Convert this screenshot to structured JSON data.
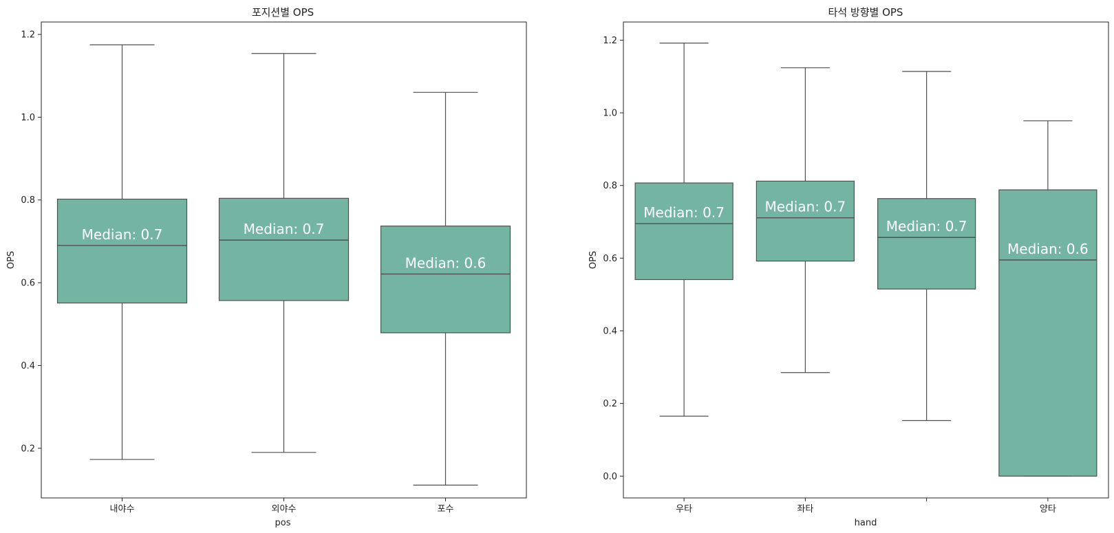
{
  "chart_data": [
    {
      "type": "box",
      "title": "포지션별 OPS",
      "xlabel": "pos",
      "ylabel": "OPS",
      "ylim": [
        0.08,
        1.23
      ],
      "yticks": [
        0.2,
        0.4,
        0.6,
        0.8,
        1.0,
        1.2
      ],
      "ytick_labels": [
        "0.2",
        "0.4",
        "0.6",
        "0.8",
        "1.0",
        "1.2"
      ],
      "categories": [
        "내야수",
        "외야수",
        "포수"
      ],
      "boxes": [
        {
          "whisker_low": 0.173,
          "q1": 0.551,
          "median": 0.69,
          "q3": 0.802,
          "whisker_high": 1.175,
          "label": "Median: 0.7"
        },
        {
          "whisker_low": 0.19,
          "q1": 0.557,
          "median": 0.703,
          "q3": 0.804,
          "whisker_high": 1.154,
          "label": "Median: 0.7"
        },
        {
          "whisker_low": 0.111,
          "q1": 0.479,
          "median": 0.621,
          "q3": 0.737,
          "whisker_high": 1.06,
          "label": "Median: 0.6"
        }
      ],
      "box_color": "#73b5a2",
      "line_color": "#4f4f4f"
    },
    {
      "type": "box",
      "title": "타석 방향별 OPS",
      "xlabel": "hand",
      "ylabel": "OPS",
      "ylim": [
        -0.06,
        1.25
      ],
      "yticks": [
        0.0,
        0.2,
        0.4,
        0.6,
        0.8,
        1.0,
        1.2
      ],
      "ytick_labels": [
        "0.0",
        "0.2",
        "0.4",
        "0.6",
        "0.8",
        "1.0",
        "1.2"
      ],
      "categories": [
        "우타",
        "좌타",
        "",
        "양타"
      ],
      "boxes": [
        {
          "whisker_low": 0.165,
          "q1": 0.541,
          "median": 0.695,
          "q3": 0.807,
          "whisker_high": 1.192,
          "label": "Median: 0.7"
        },
        {
          "whisker_low": 0.285,
          "q1": 0.592,
          "median": 0.711,
          "q3": 0.812,
          "whisker_high": 1.124,
          "label": "Median: 0.7"
        },
        {
          "whisker_low": 0.153,
          "q1": 0.515,
          "median": 0.657,
          "q3": 0.764,
          "whisker_high": 1.114,
          "label": "Median: 0.7"
        },
        {
          "whisker_low": 0.0,
          "q1": 0.0,
          "median": 0.595,
          "q3": 0.788,
          "whisker_high": 0.978,
          "label": "Median: 0.6"
        }
      ],
      "box_color": "#73b5a2",
      "line_color": "#4f4f4f"
    }
  ]
}
